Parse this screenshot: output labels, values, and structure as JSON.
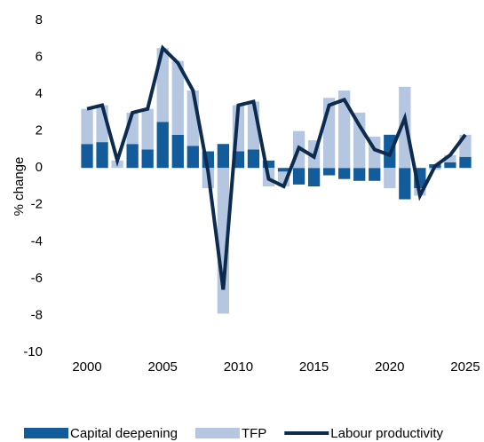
{
  "chart_data": {
    "type": "stacked-bar-line",
    "y_label": "% change",
    "x": [
      2000,
      2001,
      2002,
      2003,
      2004,
      2005,
      2006,
      2007,
      2008,
      2009,
      2010,
      2011,
      2012,
      2013,
      2014,
      2015,
      2016,
      2017,
      2018,
      2019,
      2020,
      2021,
      2022,
      2023,
      2024,
      2025
    ],
    "series": [
      {
        "name": "Capital deepening",
        "color": "#135c9c",
        "kind": "bar",
        "values": [
          1.3,
          1.4,
          0.0,
          1.3,
          1.0,
          2.5,
          1.8,
          1.2,
          0.9,
          1.3,
          0.9,
          1.0,
          0.4,
          -0.2,
          -0.9,
          -1.0,
          -0.4,
          -0.6,
          -0.7,
          -0.7,
          1.8,
          -1.7,
          -1.1,
          0.2,
          0.3,
          0.6
        ]
      },
      {
        "name": "TFP",
        "color": "#b4c6e0",
        "kind": "bar",
        "values": [
          1.9,
          2.0,
          0.4,
          1.7,
          2.2,
          4.0,
          4.0,
          3.0,
          -1.1,
          -7.9,
          2.5,
          2.6,
          -1.0,
          -0.8,
          2.0,
          1.5,
          3.8,
          4.2,
          3.0,
          1.7,
          -1.1,
          4.4,
          -0.4,
          -0.1,
          0.4,
          1.2
        ]
      },
      {
        "name": "Labour productivity",
        "color": "#0d2b4e",
        "kind": "line",
        "values": [
          3.2,
          3.4,
          0.4,
          3.0,
          3.2,
          6.5,
          5.7,
          4.2,
          -0.2,
          -6.6,
          3.4,
          3.6,
          -0.6,
          -1.0,
          1.1,
          0.6,
          3.4,
          3.7,
          2.3,
          1.0,
          0.7,
          2.7,
          -1.5,
          0.1,
          0.7,
          1.8
        ]
      }
    ],
    "xlim": [
      1999,
      2026
    ],
    "xticks": [
      2000,
      2005,
      2010,
      2015,
      2020,
      2025
    ],
    "ylim": [
      -10,
      8
    ],
    "yticks": [
      -10,
      -8,
      -6,
      -4,
      -2,
      0,
      2,
      4,
      6,
      8
    ],
    "grid": false,
    "legend": "bottom"
  }
}
